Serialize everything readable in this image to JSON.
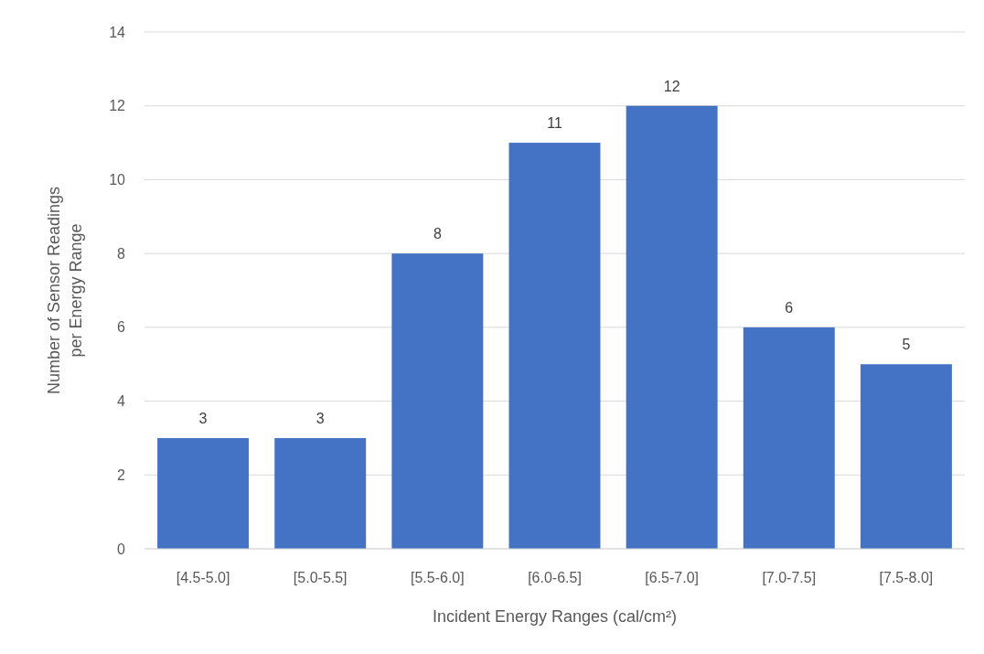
{
  "chart_data": {
    "type": "bar",
    "xlabel": "Incident Energy Ranges (cal/cm²)",
    "ylabel": "Number of Sensor Readings per Energy Range",
    "categories": [
      "[4.5-5.0]",
      "[5.0-5.5]",
      "[5.5-6.0]",
      "[6.0-6.5]",
      "[6.5-7.0]",
      "[7.0-7.5]",
      "[7.5-8.0]"
    ],
    "values": [
      3,
      3,
      8,
      11,
      12,
      6,
      5
    ],
    "color": "#4472c4",
    "ylim": [
      0,
      14
    ],
    "yticks": [
      0,
      2,
      4,
      6,
      8,
      10,
      12,
      14
    ],
    "grid": "y",
    "data_labels": true
  }
}
